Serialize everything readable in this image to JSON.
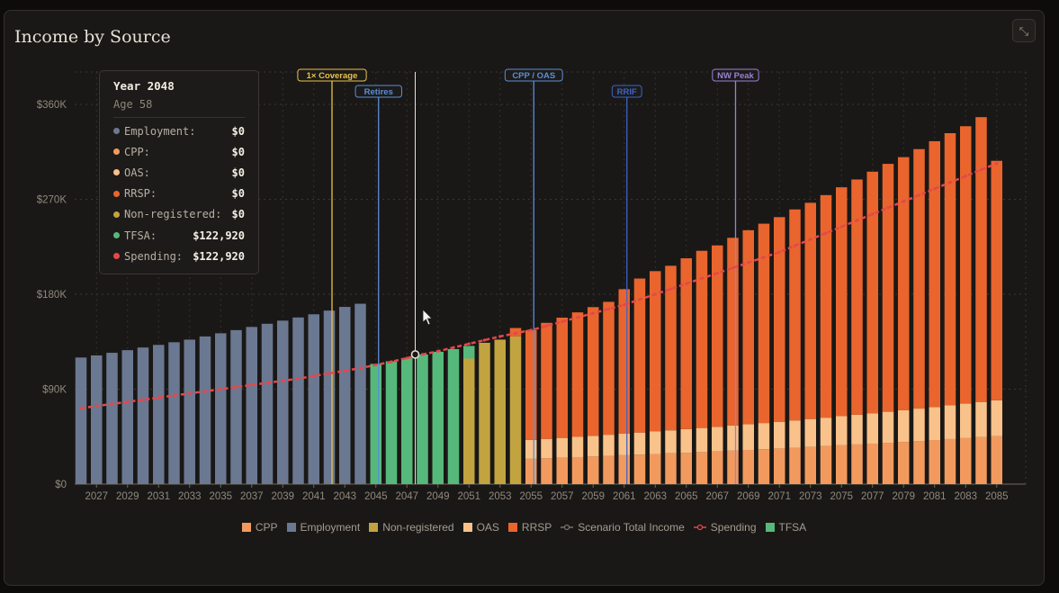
{
  "title": "Income by Source",
  "expand_icon": "⤡",
  "colors": {
    "Employment": "#6b7891",
    "TFSA": "#56b97b",
    "Non-registered": "#c1a43f",
    "CPP": "#f29a5e",
    "OAS": "#f9c28a",
    "RRSP": "#e9652d",
    "Spending": "#e3484b",
    "Scenario Total Income": "#7a736a"
  },
  "tooltip": {
    "year": "Year 2048",
    "age": "Age 58",
    "rows": [
      {
        "label": "Employment:",
        "value": "$0",
        "color": "#6b7891"
      },
      {
        "label": "CPP:",
        "value": "$0",
        "color": "#f29a5e"
      },
      {
        "label": "OAS:",
        "value": "$0",
        "color": "#f9c28a"
      },
      {
        "label": "RRSP:",
        "value": "$0",
        "color": "#e9652d"
      },
      {
        "label": "Non-registered:",
        "value": "$0",
        "color": "#c1a43f"
      },
      {
        "label": "TFSA:",
        "value": "$122,920",
        "color": "#56b97b"
      },
      {
        "label": "Spending:",
        "value": "$122,920",
        "color": "#e3484b"
      }
    ]
  },
  "legend": [
    {
      "label": "CPP",
      "kind": "square",
      "color": "#f29a5e"
    },
    {
      "label": "Employment",
      "kind": "square",
      "color": "#6b7891"
    },
    {
      "label": "Non-registered",
      "kind": "square",
      "color": "#c1a43f"
    },
    {
      "label": "OAS",
      "kind": "square",
      "color": "#f9c28a"
    },
    {
      "label": "RRSP",
      "kind": "square",
      "color": "#e9652d"
    },
    {
      "label": "Scenario Total Income",
      "kind": "line",
      "color": "#7a736a"
    },
    {
      "label": "Spending",
      "kind": "line",
      "color": "#e3484b"
    },
    {
      "label": "TFSA",
      "kind": "square",
      "color": "#56b97b"
    }
  ],
  "chart_data": {
    "type": "bar",
    "stacked": true,
    "title": "Income by Source",
    "years": [
      2026,
      2027,
      2028,
      2029,
      2030,
      2031,
      2032,
      2033,
      2034,
      2035,
      2036,
      2037,
      2038,
      2039,
      2040,
      2041,
      2042,
      2043,
      2044,
      2045,
      2046,
      2047,
      2048,
      2049,
      2050,
      2051,
      2052,
      2053,
      2054,
      2055,
      2056,
      2057,
      2058,
      2059,
      2060,
      2061,
      2062,
      2063,
      2064,
      2065,
      2066,
      2067,
      2068,
      2069,
      2070,
      2071,
      2072,
      2073,
      2074,
      2075,
      2076,
      2077,
      2078,
      2079,
      2080,
      2081,
      2082,
      2083,
      2084,
      2085
    ],
    "x_ticks": [
      2027,
      2029,
      2031,
      2033,
      2035,
      2037,
      2039,
      2041,
      2043,
      2045,
      2047,
      2049,
      2051,
      2053,
      2055,
      2057,
      2059,
      2061,
      2063,
      2065,
      2067,
      2069,
      2071,
      2073,
      2075,
      2077,
      2079,
      2081,
      2083,
      2085
    ],
    "y_ticks": [
      {
        "value": 0,
        "label": "$0"
      },
      {
        "value": 90000,
        "label": "$90K"
      },
      {
        "value": 180000,
        "label": "$180K"
      },
      {
        "value": 270000,
        "label": "$270K"
      },
      {
        "value": 360000,
        "label": "$360K"
      }
    ],
    "ylim": [
      0,
      390000
    ],
    "series": [
      {
        "name": "Employment",
        "values": [
          120000,
          122000,
          124500,
          127000,
          129500,
          132000,
          134500,
          137000,
          140000,
          143000,
          146000,
          149000,
          152000,
          155000,
          158000,
          161000,
          164500,
          168000,
          171000,
          0,
          0,
          0,
          0,
          0,
          0,
          0,
          0,
          0,
          0,
          0,
          0,
          0,
          0,
          0,
          0,
          0,
          0,
          0,
          0,
          0,
          0,
          0,
          0,
          0,
          0,
          0,
          0,
          0,
          0,
          0,
          0,
          0,
          0,
          0,
          0,
          0,
          0,
          0,
          0,
          0
        ]
      },
      {
        "name": "TFSA",
        "values": [
          0,
          0,
          0,
          0,
          0,
          0,
          0,
          0,
          0,
          0,
          0,
          0,
          0,
          0,
          0,
          0,
          0,
          0,
          0,
          114000,
          116500,
          119500,
          122920,
          125500,
          128000,
          12000,
          0,
          0,
          0,
          0,
          0,
          0,
          0,
          0,
          0,
          0,
          0,
          0,
          0,
          0,
          0,
          0,
          0,
          0,
          0,
          0,
          0,
          0,
          0,
          0,
          0,
          0,
          0,
          0,
          0,
          0,
          0,
          0,
          0,
          0
        ]
      },
      {
        "name": "Non-registered",
        "values": [
          0,
          0,
          0,
          0,
          0,
          0,
          0,
          0,
          0,
          0,
          0,
          0,
          0,
          0,
          0,
          0,
          0,
          0,
          0,
          0,
          0,
          0,
          0,
          0,
          0,
          119000,
          134000,
          137000,
          140000,
          0,
          0,
          0,
          0,
          0,
          0,
          0,
          0,
          0,
          0,
          0,
          0,
          0,
          0,
          0,
          0,
          0,
          0,
          0,
          0,
          0,
          0,
          0,
          0,
          0,
          0,
          0,
          0,
          0,
          0,
          0
        ]
      },
      {
        "name": "CPP",
        "values": [
          0,
          0,
          0,
          0,
          0,
          0,
          0,
          0,
          0,
          0,
          0,
          0,
          0,
          0,
          0,
          0,
          0,
          0,
          0,
          0,
          0,
          0,
          0,
          0,
          0,
          0,
          0,
          0,
          0,
          24000,
          24500,
          25000,
          25600,
          26200,
          26800,
          27400,
          28000,
          28600,
          29200,
          29800,
          30400,
          31000,
          31700,
          32400,
          33100,
          33800,
          34500,
          35200,
          36000,
          36800,
          37600,
          38400,
          39200,
          40000,
          40900,
          41800,
          42700,
          43600,
          44500,
          45400
        ]
      },
      {
        "name": "OAS",
        "values": [
          0,
          0,
          0,
          0,
          0,
          0,
          0,
          0,
          0,
          0,
          0,
          0,
          0,
          0,
          0,
          0,
          0,
          0,
          0,
          0,
          0,
          0,
          0,
          0,
          0,
          0,
          0,
          0,
          0,
          18000,
          18400,
          18800,
          19200,
          19600,
          20000,
          20400,
          20900,
          21300,
          21800,
          22300,
          22800,
          23300,
          23800,
          24300,
          24800,
          25300,
          25900,
          26500,
          27000,
          27600,
          28200,
          28800,
          29400,
          30000,
          30700,
          31300,
          32000,
          32700,
          33400,
          34100
        ]
      },
      {
        "name": "RRSP",
        "values": [
          0,
          0,
          0,
          0,
          0,
          0,
          0,
          0,
          0,
          0,
          0,
          0,
          0,
          0,
          0,
          0,
          0,
          0,
          0,
          0,
          0,
          0,
          0,
          0,
          0,
          0,
          0,
          0,
          8000,
          104000,
          110000,
          114000,
          118000,
          122000,
          126000,
          137000,
          146000,
          152000,
          156000,
          162000,
          168000,
          172000,
          178000,
          184000,
          189000,
          194000,
          200000,
          205000,
          211000,
          217000,
          223000,
          229000,
          235000,
          240000,
          246000,
          252000,
          258000,
          263000,
          270000,
          227000
        ]
      }
    ],
    "spending": [
      72000,
      74000,
      76000,
      78000,
      80000,
      82000,
      84000,
      86000,
      88000,
      90000,
      92000,
      94000,
      96000,
      98000,
      100000,
      102500,
      105000,
      107500,
      110000,
      113000,
      116000,
      119500,
      122920,
      126000,
      129500,
      133000,
      136500,
      140000,
      143000,
      146000,
      150000,
      154000,
      158000,
      162000,
      166000,
      170000,
      175000,
      180000,
      185000,
      190000,
      195000,
      200000,
      205000,
      210000,
      215000,
      220000,
      226000,
      232000,
      238000,
      244000,
      250000,
      256000,
      262000,
      268000,
      274000,
      280000,
      286000,
      292000,
      298000,
      304000
    ],
    "markers": [
      {
        "label": "1× Coverage",
        "year": 2042,
        "color": "#e8c24a"
      },
      {
        "label": "Retires",
        "year": 2045,
        "color": "#5a8fd8"
      },
      {
        "label": "CPP / OAS",
        "year": 2055,
        "color": "#5a8fd8"
      },
      {
        "label": "RRIF",
        "year": 2061,
        "color": "#3d63c9"
      },
      {
        "label": "NW Peak",
        "year": 2068,
        "color": "#9a80d6"
      }
    ],
    "hover_year": 2048,
    "grid": true
  }
}
